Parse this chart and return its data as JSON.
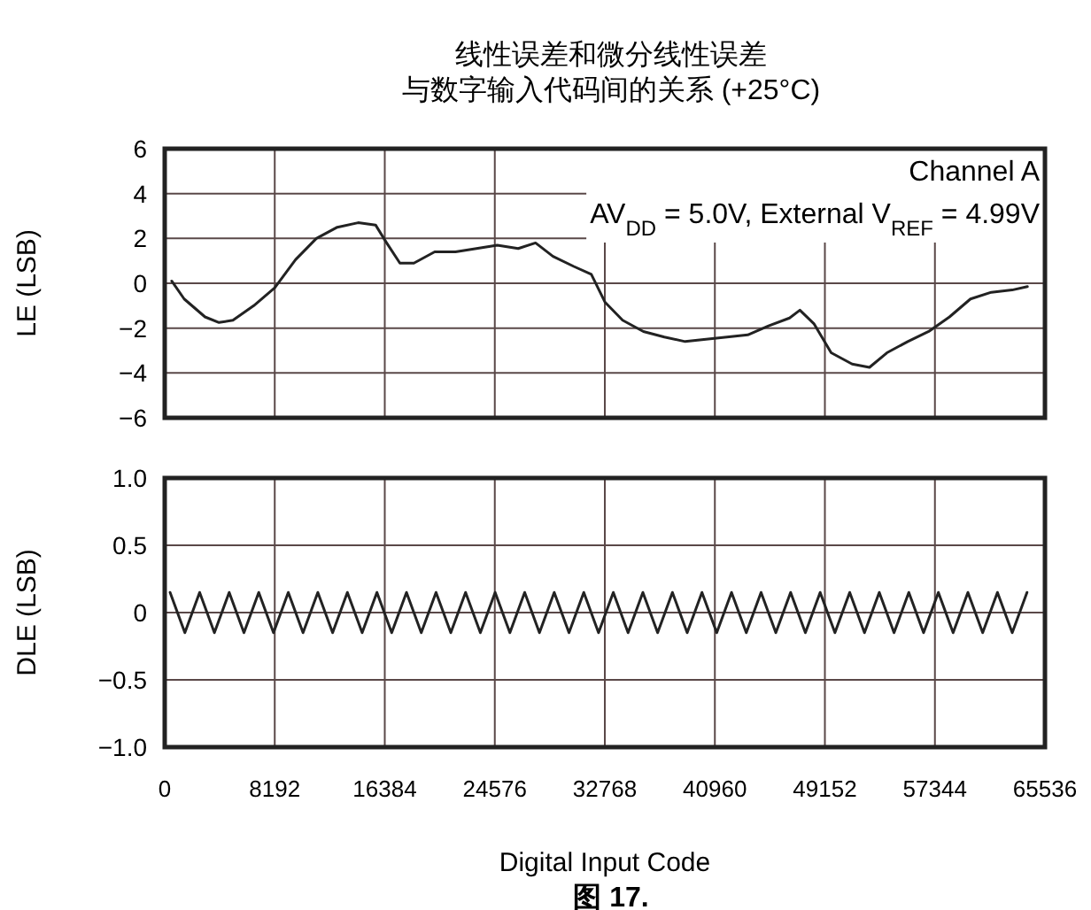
{
  "chart_data": [
    {
      "type": "line",
      "title": "线性误差和微分线性误差",
      "subtitle": "与数字输入代码间的关系 (+25°C)",
      "ylabel": "LE (LSB)",
      "xlim": [
        0,
        65536
      ],
      "xticks": [
        0,
        8192,
        16384,
        24576,
        32768,
        40960,
        49152,
        57344,
        65536
      ],
      "ylim": [
        -6,
        6
      ],
      "yticks": [
        {
          "value": -6,
          "label": "−6"
        },
        {
          "value": -4,
          "label": "−4"
        },
        {
          "value": -2,
          "label": "−2"
        },
        0,
        2,
        4,
        6
      ],
      "tick_labels": "y",
      "grid": true,
      "marker": "none",
      "line_style": "solid",
      "annotations": [
        "Channel A",
        "AV$_{DD}$ = 5.0V, External V$_{REF}$ = 4.99V"
      ],
      "series": [
        {
          "color": "#222222",
          "x": [
            520,
            1450,
            3000,
            4040,
            5080,
            6630,
            8190,
            9740,
            11290,
            12850,
            14400,
            15700,
            16470,
            17510,
            18550,
            20100,
            21650,
            23210,
            24760,
            26320,
            27610,
            28910,
            30460,
            31760,
            32790,
            34090,
            35640,
            37200,
            38750,
            40300,
            41860,
            43410,
            44960,
            46520,
            47290,
            48330,
            49620,
            51180,
            52470,
            53770,
            55320,
            56880,
            58430,
            59990,
            61540,
            63090,
            64230
          ],
          "values": [
            0.1,
            -0.7,
            -1.5,
            -1.75,
            -1.65,
            -1.0,
            -0.2,
            1.05,
            2.0,
            2.5,
            2.7,
            2.6,
            1.85,
            0.9,
            0.9,
            1.4,
            1.4,
            1.55,
            1.7,
            1.55,
            1.8,
            1.2,
            0.75,
            0.4,
            -0.85,
            -1.65,
            -2.15,
            -2.4,
            -2.6,
            -2.5,
            -2.4,
            -2.3,
            -1.9,
            -1.55,
            -1.2,
            -1.8,
            -3.1,
            -3.6,
            -3.75,
            -3.1,
            -2.6,
            -2.15,
            -1.5,
            -0.7,
            -0.4,
            -0.3,
            -0.15
          ]
        }
      ]
    },
    {
      "type": "line",
      "xlabel": "Digital Input Code",
      "ylabel": "DLE (LSB)",
      "xlim": [
        0,
        65536
      ],
      "xticks": [
        0,
        8192,
        16384,
        24576,
        32768,
        40960,
        49152,
        57344,
        65536
      ],
      "ylim": [
        -1.0,
        1.0
      ],
      "yticks": [
        {
          "value": -1.0,
          "label": "−1.0"
        },
        {
          "value": -0.5,
          "label": "−0.5"
        },
        0,
        {
          "value": 0.5,
          "label": "0.5"
        },
        {
          "value": 1.0,
          "label": "1.0"
        }
      ],
      "grid": true,
      "marker": "none",
      "line_style": "solid",
      "annotations": [
        "图 17."
      ],
      "series": [
        {
          "color": "#222222",
          "x": [
            400,
            1500,
            2600,
            3700,
            4800,
            5900,
            7000,
            8100,
            9200,
            10300,
            11400,
            12500,
            13600,
            14700,
            15800,
            16900,
            18000,
            19100,
            20200,
            21300,
            22400,
            23500,
            24600,
            25700,
            26800,
            27900,
            29000,
            30100,
            31200,
            32300,
            33400,
            34500,
            35600,
            36700,
            37800,
            38900,
            40000,
            41100,
            42200,
            43300,
            44400,
            45500,
            46600,
            47700,
            48800,
            49900,
            51000,
            52100,
            53200,
            54300,
            55400,
            56500,
            57600,
            58700,
            59800,
            60900,
            62000,
            63100,
            64200
          ],
          "values": [
            0.15,
            -0.15,
            0.15,
            -0.15,
            0.15,
            -0.15,
            0.15,
            -0.15,
            0.15,
            -0.15,
            0.15,
            -0.15,
            0.15,
            -0.15,
            0.15,
            -0.15,
            0.15,
            -0.15,
            0.15,
            -0.15,
            0.15,
            -0.15,
            0.15,
            -0.15,
            0.15,
            -0.15,
            0.15,
            -0.15,
            0.15,
            -0.15,
            0.15,
            -0.15,
            0.15,
            -0.15,
            0.15,
            -0.15,
            0.15,
            -0.15,
            0.15,
            -0.15,
            0.15,
            -0.15,
            0.15,
            -0.15,
            0.15,
            -0.15,
            0.15,
            -0.15,
            0.15,
            -0.15,
            0.15,
            -0.15,
            0.15,
            -0.15,
            0.15,
            -0.15,
            0.15,
            -0.15,
            0.15
          ]
        }
      ]
    }
  ]
}
